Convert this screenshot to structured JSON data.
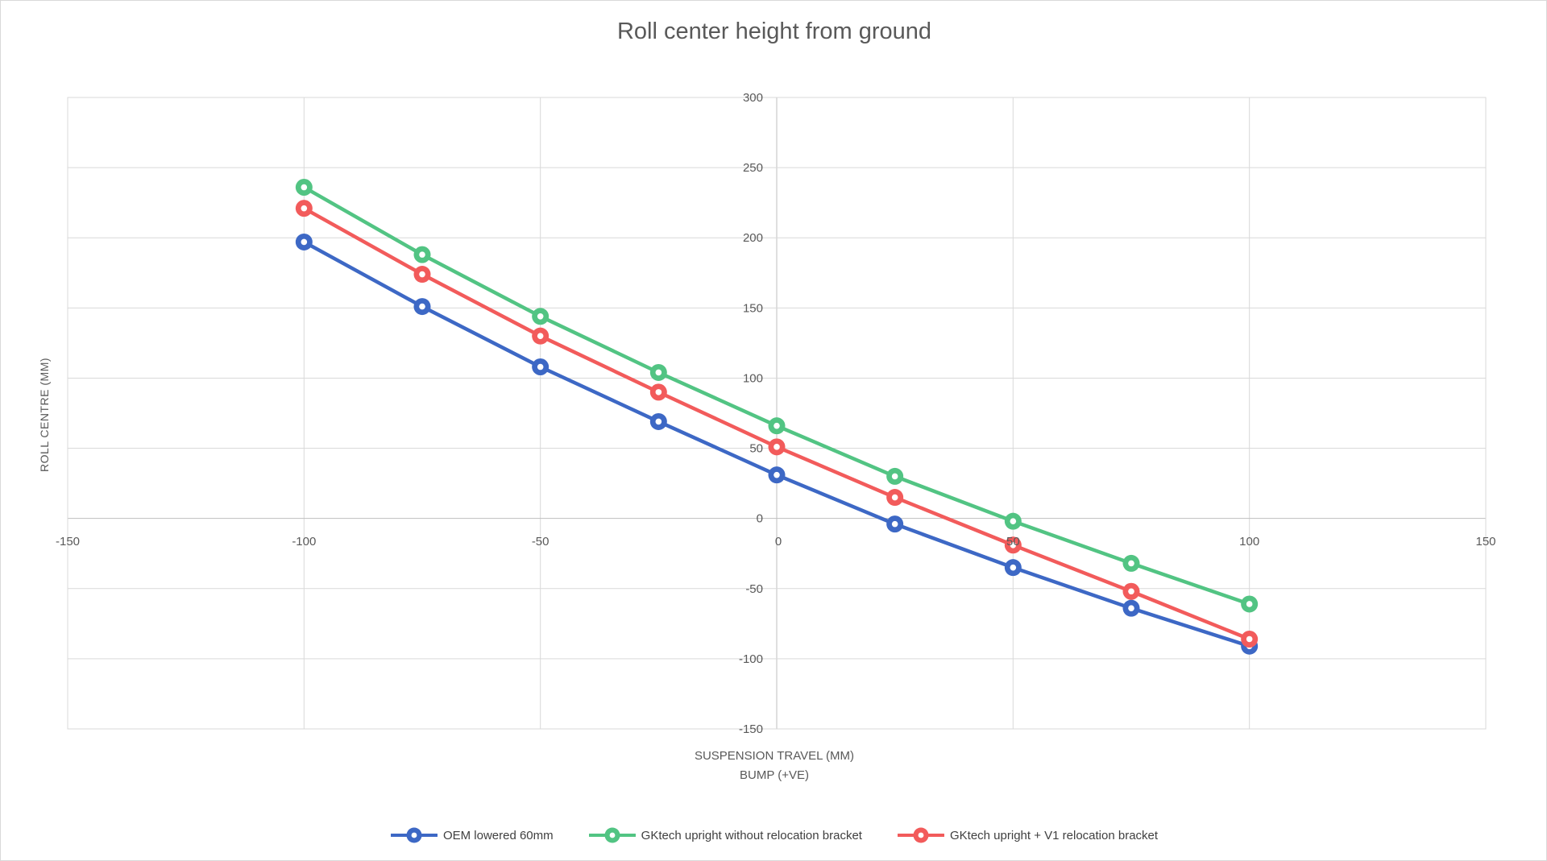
{
  "figure": {
    "background": "#ffffff",
    "border_color": "#d9d9d9"
  },
  "chart_data": {
    "type": "line",
    "title": "Roll center height from ground",
    "xlabel_line1": "SUSPENSION TRAVEL (MM)",
    "xlabel_line2": "BUMP (+VE)",
    "ylabel": "ROLL CENTRE (MM)",
    "x": [
      -100,
      -75,
      -50,
      -25,
      0,
      25,
      50,
      75,
      100
    ],
    "series": [
      {
        "name": "OEM lowered 60mm",
        "color": "#3D68C5",
        "values": [
          197,
          151,
          108,
          69,
          31,
          -4,
          -35,
          -64,
          -91
        ]
      },
      {
        "name": "GKtech upright without relocation bracket",
        "color": "#52C483",
        "values": [
          236,
          188,
          144,
          104,
          66,
          30,
          -2,
          -32,
          -61
        ]
      },
      {
        "name": "GKtech upright + V1 relocation bracket",
        "color": "#F25B5B",
        "values": [
          221,
          174,
          130,
          90,
          51,
          15,
          -19,
          -52,
          -86
        ]
      }
    ],
    "xlim": [
      -150,
      150
    ],
    "ylim": [
      -150,
      300
    ],
    "x_ticks": [
      -150,
      -100,
      -50,
      0,
      50,
      100,
      150
    ],
    "y_ticks": [
      300,
      250,
      200,
      150,
      100,
      50,
      0,
      -50,
      -100,
      -150
    ],
    "grid": true,
    "legend_position": "bottom",
    "style": {
      "gridline_color": "#D9D9D9",
      "axis_line_color": "#BFBFBF",
      "plot_border_color": "#D9D9D9",
      "tick_label_color": "#595959",
      "title_color": "#595959",
      "legend_text_color": "#404040",
      "marker_hole_color": "#FFFFFF"
    }
  }
}
